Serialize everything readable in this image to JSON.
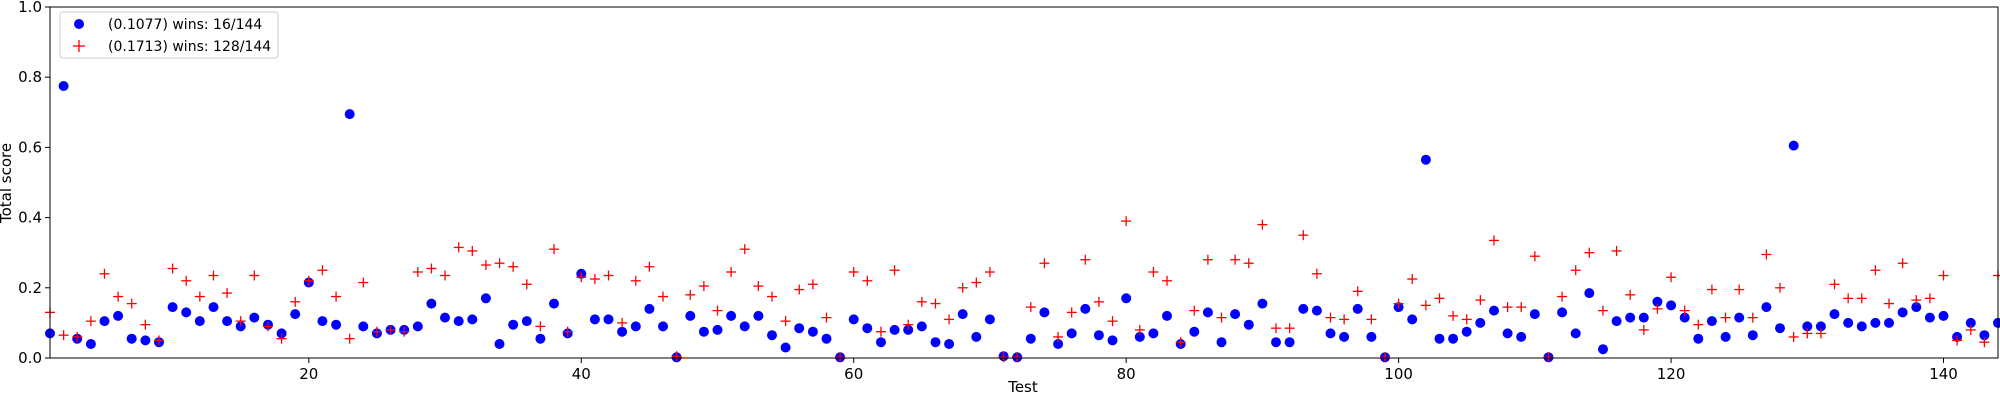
{
  "chart_data": {
    "type": "scatter",
    "xlabel": "Test",
    "ylabel": "Total score",
    "xlim": [
      1,
      144
    ],
    "ylim": [
      0,
      1.0
    ],
    "xticks": [
      20,
      40,
      60,
      80,
      100,
      120,
      140
    ],
    "yticks": [
      0.0,
      0.2,
      0.4,
      0.6,
      0.8,
      1.0
    ],
    "xtick_labels": [
      "20",
      "40",
      "60",
      "80",
      "100",
      "120",
      "140"
    ],
    "ytick_labels": [
      "0.0",
      "0.2",
      "0.4",
      "0.6",
      "0.8",
      "1.0"
    ],
    "grid": false,
    "legend_position": "top-left",
    "series": [
      {
        "name": "(0.1077) wins: 16/144",
        "marker": "circle",
        "color": "#0000ff",
        "values": [
          0.07,
          0.775,
          0.055,
          0.04,
          0.105,
          0.12,
          0.055,
          0.05,
          0.045,
          0.145,
          0.13,
          0.105,
          0.145,
          0.105,
          0.09,
          0.115,
          0.095,
          0.07,
          0.125,
          0.215,
          0.105,
          0.095,
          0.695,
          0.09,
          0.07,
          0.08,
          0.08,
          0.09,
          0.155,
          0.115,
          0.105,
          0.11,
          0.17,
          0.04,
          0.095,
          0.105,
          0.055,
          0.155,
          0.07,
          0.24,
          0.11,
          0.11,
          0.075,
          0.09,
          0.14,
          0.09,
          0.002,
          0.12,
          0.075,
          0.08,
          0.12,
          0.09,
          0.12,
          0.065,
          0.03,
          0.085,
          0.075,
          0.055,
          0.002,
          0.11,
          0.085,
          0.045,
          0.08,
          0.08,
          0.09,
          0.045,
          0.04,
          0.125,
          0.06,
          0.11,
          0.005,
          0.002,
          0.055,
          0.13,
          0.04,
          0.07,
          0.14,
          0.065,
          0.05,
          0.17,
          0.06,
          0.07,
          0.12,
          0.04,
          0.075,
          0.13,
          0.045,
          0.125,
          0.095,
          0.155,
          0.045,
          0.045,
          0.14,
          0.135,
          0.07,
          0.06,
          0.14,
          0.06,
          0.002,
          0.145,
          0.11,
          0.565,
          0.055,
          0.055,
          0.075,
          0.1,
          0.135,
          0.07,
          0.06,
          0.125,
          0.002,
          0.13,
          0.07,
          0.185,
          0.025,
          0.105,
          0.115,
          0.115,
          0.16,
          0.15,
          0.115,
          0.055,
          0.105,
          0.06,
          0.115,
          0.065,
          0.145,
          0.085,
          0.605,
          0.09,
          0.09,
          0.125,
          0.1,
          0.09,
          0.1,
          0.1,
          0.13,
          0.145,
          0.115,
          0.12,
          0.06,
          0.1,
          0.065,
          0.1
        ]
      },
      {
        "name": "(0.1713) wins: 128/144",
        "marker": "plus",
        "color": "#ff0000",
        "values": [
          0.13,
          0.065,
          0.06,
          0.105,
          0.24,
          0.175,
          0.155,
          0.095,
          0.05,
          0.255,
          0.22,
          0.175,
          0.235,
          0.185,
          0.105,
          0.235,
          0.09,
          0.055,
          0.16,
          0.22,
          0.25,
          0.175,
          0.055,
          0.215,
          0.075,
          0.08,
          0.075,
          0.245,
          0.255,
          0.235,
          0.315,
          0.305,
          0.265,
          0.27,
          0.26,
          0.21,
          0.09,
          0.31,
          0.075,
          0.23,
          0.225,
          0.235,
          0.1,
          0.22,
          0.26,
          0.175,
          0.005,
          0.18,
          0.205,
          0.135,
          0.245,
          0.31,
          0.205,
          0.175,
          0.105,
          0.195,
          0.21,
          0.115,
          0.002,
          0.245,
          0.22,
          0.075,
          0.25,
          0.095,
          0.16,
          0.155,
          0.11,
          0.2,
          0.215,
          0.245,
          0.002,
          0.002,
          0.145,
          0.27,
          0.06,
          0.13,
          0.28,
          0.16,
          0.105,
          0.39,
          0.08,
          0.245,
          0.22,
          0.045,
          0.135,
          0.28,
          0.115,
          0.28,
          0.27,
          0.38,
          0.085,
          0.085,
          0.35,
          0.24,
          0.115,
          0.11,
          0.19,
          0.11,
          0.002,
          0.155,
          0.225,
          0.15,
          0.17,
          0.12,
          0.11,
          0.165,
          0.335,
          0.145,
          0.145,
          0.29,
          0.002,
          0.175,
          0.25,
          0.3,
          0.135,
          0.305,
          0.18,
          0.08,
          0.14,
          0.23,
          0.135,
          0.095,
          0.195,
          0.115,
          0.195,
          0.115,
          0.295,
          0.2,
          0.06,
          0.07,
          0.07,
          0.21,
          0.17,
          0.17,
          0.25,
          0.155,
          0.27,
          0.165,
          0.17,
          0.235,
          0.05,
          0.08,
          0.045,
          0.235
        ]
      }
    ]
  }
}
